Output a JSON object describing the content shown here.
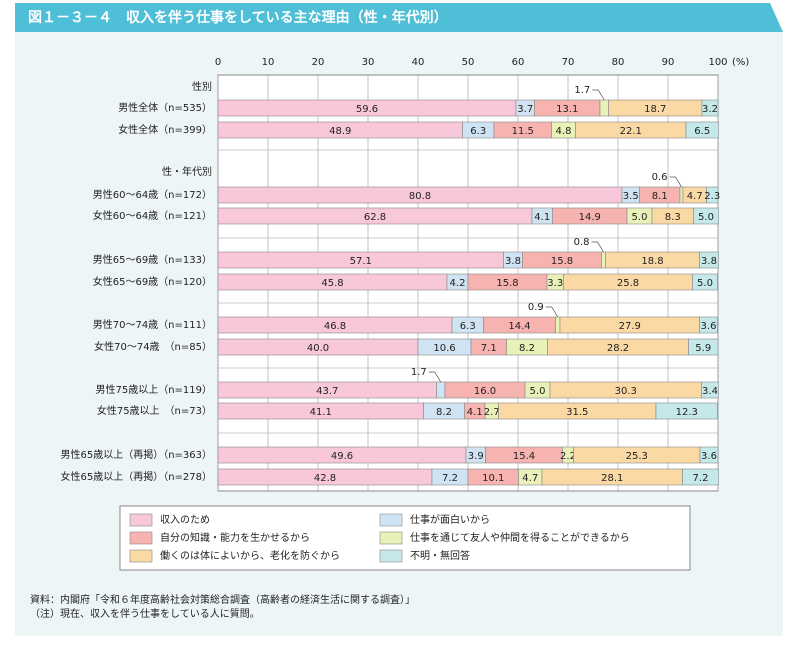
{
  "chart_data": {
    "type": "bar",
    "orientation": "horizontal",
    "stacked": true,
    "title": "図１－３－４　収入を伴う仕事をしている主な理由（性・年代別）",
    "x_label": "(%)",
    "xlim": [
      0,
      100
    ],
    "xticks": [
      0,
      10,
      20,
      30,
      40,
      50,
      60,
      70,
      80,
      90,
      100
    ],
    "grid": true,
    "categories": [
      "性別",
      "男性全体（n=535）",
      "女性全体（n=399）",
      "性・年代別",
      "男性60～64歳（n=172）",
      "女性60～64歳（n=121）",
      "男性65～69歳（n=133）",
      "女性65～69歳（n=120）",
      "男性70～74歳（n=111）",
      "女性70～74歳　（n=85）",
      "男性75歳以上（n=119）",
      "女性75歳以上　（n=73）",
      "男性65歳以上（再掲）（n=363）",
      "女性65歳以上（再掲）（n=278）"
    ],
    "series": [
      {
        "name": "収入のため",
        "color": "#f8c8da",
        "values": [
          null,
          59.6,
          48.9,
          null,
          80.8,
          62.8,
          57.1,
          45.8,
          46.8,
          40.0,
          43.7,
          41.1,
          49.6,
          42.8
        ],
        "value_labels": [
          null,
          "59.6",
          "48.9",
          null,
          "80.8",
          "62.8",
          "57.1",
          "45.8",
          "46.8",
          "40.0",
          "43.7",
          "41.1",
          "49.6",
          "42.8"
        ]
      },
      {
        "name": "仕事が面白いから",
        "color": "#cfe3f2",
        "values": [
          null,
          3.7,
          6.3,
          null,
          3.5,
          4.1,
          3.8,
          4.2,
          6.3,
          10.6,
          1.7,
          8.2,
          3.9,
          7.2
        ],
        "value_labels": [
          null,
          "3.7",
          "6.3",
          null,
          "3.5",
          "4.1",
          "3.8",
          "4.2",
          "6.3",
          "10.6",
          "1.7",
          "8.2",
          "3.9",
          "7.2"
        ]
      },
      {
        "name": "自分の知識・能力を生かせるから",
        "color": "#f7b3b0",
        "values": [
          null,
          13.1,
          11.5,
          null,
          8.1,
          14.9,
          15.8,
          15.8,
          14.4,
          7.1,
          16.0,
          4.1,
          15.4,
          10.1
        ],
        "value_labels": [
          null,
          "13.1",
          "11.5",
          null,
          "8.1",
          "14.9",
          "15.8",
          "15.8",
          "14.4",
          "7.1",
          "16.0",
          "4.1",
          "15.4",
          "10.1"
        ]
      },
      {
        "name": "仕事を通じて友人や仲間を得ることができるから",
        "color": "#e9f0b8",
        "values": [
          null,
          1.7,
          4.8,
          null,
          0.6,
          5.0,
          0.8,
          3.3,
          0.9,
          8.2,
          5.0,
          2.7,
          2.2,
          4.7
        ],
        "value_labels": [
          null,
          "1.7",
          "4.8",
          null,
          "0.6",
          "5.0",
          "0.8",
          "3.3",
          "0.9",
          "8.2",
          "5.0",
          "2.7",
          "2.2",
          "4.7"
        ]
      },
      {
        "name": "働くのは体によいから、老化を防ぐから",
        "color": "#fbd9a4",
        "values": [
          null,
          18.7,
          22.1,
          null,
          4.7,
          8.3,
          18.8,
          25.8,
          27.9,
          28.2,
          30.3,
          31.5,
          25.3,
          28.1
        ],
        "value_labels": [
          null,
          "18.7",
          "22.1",
          null,
          "4.7",
          "8.3",
          "18.8",
          "25.8",
          "27.9",
          "28.2",
          "30.3",
          "31.5",
          "25.3",
          "28.1"
        ]
      },
      {
        "name": "不明・無回答",
        "color": "#c5e8ea",
        "values": [
          null,
          3.2,
          6.5,
          null,
          2.3,
          5.0,
          3.8,
          5.0,
          3.6,
          5.9,
          3.4,
          12.3,
          3.6,
          7.2
        ],
        "value_labels": [
          null,
          "3.2",
          "6.5",
          null,
          "2.3",
          "5.0",
          "3.8",
          "5.0",
          "3.6",
          "5.9",
          "3.4",
          "12.3",
          "3.6",
          "7.2"
        ]
      }
    ],
    "notes": [
      "資料：内閣府「令和６年度高齢社会対策総合調査（高齢者の経済生活に関する調査）」",
      "（注）現在、収入を伴う仕事をしている人に質問。"
    ]
  }
}
